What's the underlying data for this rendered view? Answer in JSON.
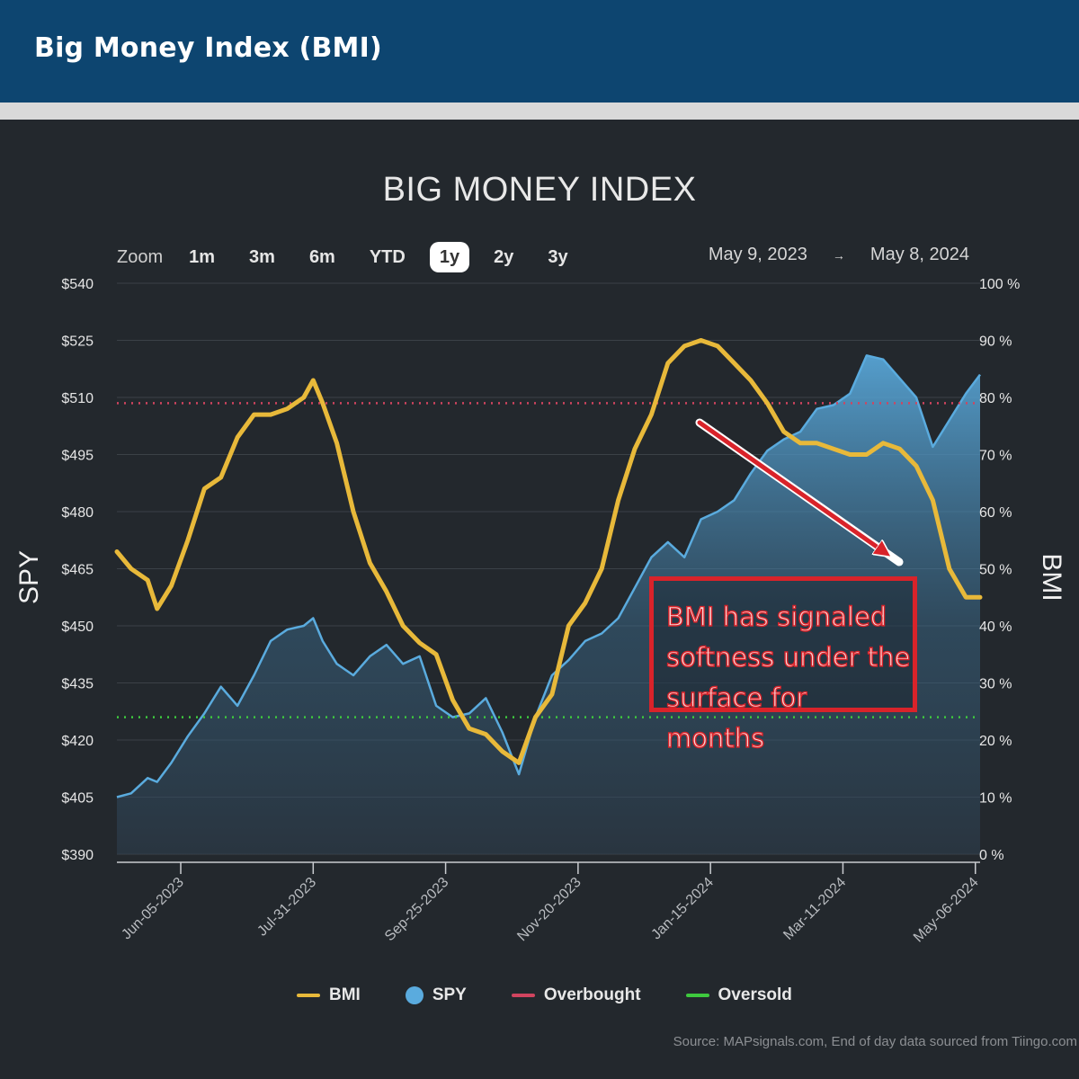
{
  "header": {
    "title": "Big Money Index (BMI)"
  },
  "zoom": {
    "label": "Zoom",
    "buttons": [
      "1m",
      "3m",
      "6m",
      "YTD",
      "1y",
      "2y",
      "3y"
    ],
    "active": "1y"
  },
  "range": {
    "from": "May 9, 2023",
    "arrow": "→",
    "to": "May 8, 2024"
  },
  "annotation": {
    "lines": [
      "BMI has signaled",
      "softness under the",
      "surface for months"
    ],
    "color": "#d9232a"
  },
  "legend": [
    {
      "label": "BMI",
      "color": "#e8b93a",
      "kind": "line"
    },
    {
      "label": "SPY",
      "color": "#5aabde",
      "kind": "dot"
    },
    {
      "label": "Overbought",
      "color": "#d1445f",
      "kind": "line"
    },
    {
      "label": "Oversold",
      "color": "#3ec93e",
      "kind": "line"
    }
  ],
  "source": "Source: MAPsignals.com, End of day data sourced from Tiingo.com",
  "chart_data": {
    "type": "line",
    "title": "BIG MONEY INDEX",
    "ylabel": "SPY",
    "ylabel_right": "BMI",
    "y_ticks": [
      "$540",
      "$525",
      "$510",
      "$495",
      "$480",
      "$465",
      "$450",
      "$435",
      "$420",
      "$405",
      "$390"
    ],
    "y_ticks_right": [
      "100 %",
      "90 %",
      "80 %",
      "70 %",
      "60 %",
      "50 %",
      "40 %",
      "30 %",
      "20 %",
      "10 %",
      "0 %"
    ],
    "ylim": [
      390,
      540
    ],
    "ylim_right": [
      0,
      100
    ],
    "x_ticks": [
      "Jun-05-2023",
      "Jul-31-2023",
      "Sep-25-2023",
      "Nov-20-2023",
      "Jan-15-2024",
      "Mar-11-2024",
      "May-06-2024"
    ],
    "x_range": [
      "2023-05-09",
      "2024-05-08"
    ],
    "grid": true,
    "legend_position": "bottom",
    "overbought_level": 79,
    "oversold_level": 24,
    "series": [
      {
        "name": "BMI",
        "axis": "right",
        "color": "#e8b93a",
        "x": [
          "2023-05-09",
          "2023-05-15",
          "2023-05-22",
          "2023-05-26",
          "2023-06-01",
          "2023-06-08",
          "2023-06-15",
          "2023-06-22",
          "2023-06-29",
          "2023-07-06",
          "2023-07-13",
          "2023-07-20",
          "2023-07-27",
          "2023-07-31",
          "2023-08-04",
          "2023-08-10",
          "2023-08-17",
          "2023-08-24",
          "2023-08-31",
          "2023-09-07",
          "2023-09-14",
          "2023-09-21",
          "2023-09-28",
          "2023-10-05",
          "2023-10-12",
          "2023-10-19",
          "2023-10-26",
          "2023-11-02",
          "2023-11-09",
          "2023-11-16",
          "2023-11-23",
          "2023-11-30",
          "2023-12-07",
          "2023-12-14",
          "2023-12-21",
          "2023-12-28",
          "2024-01-04",
          "2024-01-11",
          "2024-01-18",
          "2024-01-25",
          "2024-02-01",
          "2024-02-08",
          "2024-02-15",
          "2024-02-22",
          "2024-02-29",
          "2024-03-07",
          "2024-03-14",
          "2024-03-21",
          "2024-03-28",
          "2024-04-04",
          "2024-04-11",
          "2024-04-18",
          "2024-04-25",
          "2024-05-02",
          "2024-05-08"
        ],
        "values": [
          53,
          50,
          48,
          43,
          47,
          55,
          64,
          66,
          73,
          77,
          77,
          78,
          80,
          83,
          79,
          72,
          60,
          51,
          46,
          40,
          37,
          35,
          27,
          22,
          21,
          18,
          16,
          24,
          28,
          40,
          44,
          50,
          62,
          71,
          77,
          86,
          89,
          90,
          89,
          86,
          83,
          79,
          74,
          72,
          72,
          71,
          70,
          70,
          72,
          71,
          68,
          62,
          50,
          45,
          45
        ]
      },
      {
        "name": "SPY",
        "axis": "left",
        "color": "#5aabde",
        "x": [
          "2023-05-09",
          "2023-05-15",
          "2023-05-22",
          "2023-05-26",
          "2023-06-01",
          "2023-06-08",
          "2023-06-15",
          "2023-06-22",
          "2023-06-29",
          "2023-07-06",
          "2023-07-13",
          "2023-07-20",
          "2023-07-27",
          "2023-07-31",
          "2023-08-04",
          "2023-08-10",
          "2023-08-17",
          "2023-08-24",
          "2023-08-31",
          "2023-09-07",
          "2023-09-14",
          "2023-09-21",
          "2023-09-28",
          "2023-10-05",
          "2023-10-12",
          "2023-10-19",
          "2023-10-26",
          "2023-11-02",
          "2023-11-09",
          "2023-11-16",
          "2023-11-23",
          "2023-11-30",
          "2023-12-07",
          "2023-12-14",
          "2023-12-21",
          "2023-12-28",
          "2024-01-04",
          "2024-01-11",
          "2024-01-18",
          "2024-01-25",
          "2024-02-01",
          "2024-02-08",
          "2024-02-15",
          "2024-02-22",
          "2024-02-29",
          "2024-03-07",
          "2024-03-14",
          "2024-03-21",
          "2024-03-28",
          "2024-04-04",
          "2024-04-11",
          "2024-04-18",
          "2024-04-25",
          "2024-05-02",
          "2024-05-08"
        ],
        "values": [
          405,
          406,
          410,
          409,
          414,
          421,
          427,
          434,
          429,
          437,
          446,
          449,
          450,
          452,
          446,
          440,
          437,
          442,
          445,
          440,
          442,
          429,
          426,
          427,
          431,
          422,
          411,
          426,
          437,
          441,
          446,
          448,
          452,
          460,
          468,
          472,
          468,
          478,
          480,
          483,
          490,
          496,
          499,
          501,
          507,
          508,
          511,
          521,
          520,
          515,
          510,
          497,
          504,
          511,
          516
        ]
      }
    ]
  }
}
